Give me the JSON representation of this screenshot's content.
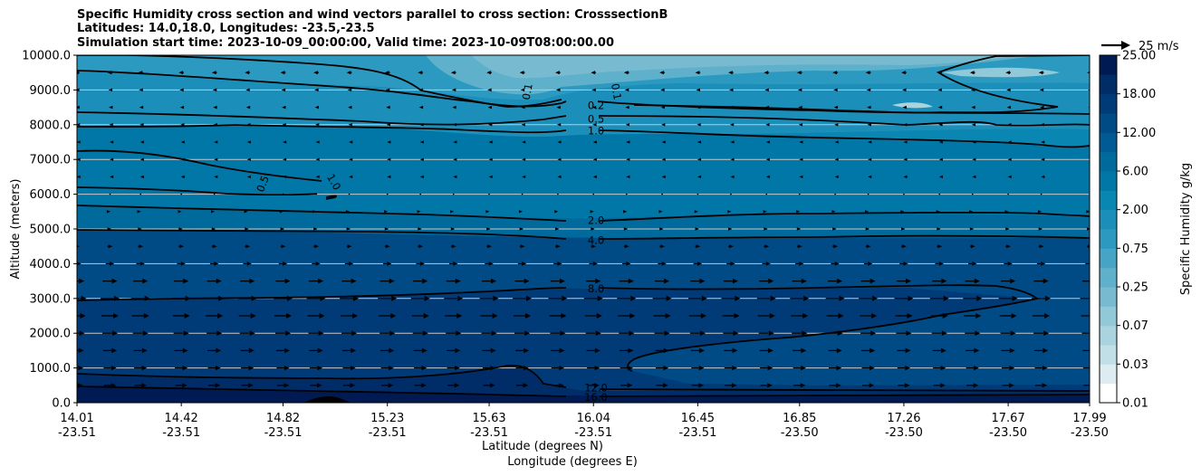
{
  "chart_data": {
    "type": "contour",
    "title_lines": [
      "Specific Humidity cross section and wind vectors parallel to cross section: CrosssectionB",
      "Latitudes: 14.0,18.0, Longitudes: -23.5,-23.5",
      "Simulation start time: 2023-10-09_00:00:00, Valid time: 2023-10-09T08:00:00.00"
    ],
    "ylabel": "Altitude (meters)",
    "xlabel_lat": "Latitude (degrees N)",
    "xlabel_lon": "Longitude (degrees E)",
    "ylim": [
      0,
      10000
    ],
    "y_ticks": [
      0,
      1000,
      2000,
      3000,
      4000,
      5000,
      6000,
      7000,
      8000,
      9000,
      10000
    ],
    "y_tick_labels": [
      "0.0",
      "1000.0",
      "2000.0",
      "3000.0",
      "4000.0",
      "5000.0",
      "6000.0",
      "7000.0",
      "8000.0",
      "9000.0",
      "10000.0"
    ],
    "x_ticks": [
      {
        "lat": "14.01",
        "lon": "-23.51"
      },
      {
        "lat": "14.42",
        "lon": "-23.51"
      },
      {
        "lat": "14.82",
        "lon": "-23.51"
      },
      {
        "lat": "15.23",
        "lon": "-23.51"
      },
      {
        "lat": "15.63",
        "lon": "-23.51"
      },
      {
        "lat": "16.04",
        "lon": "-23.51"
      },
      {
        "lat": "16.45",
        "lon": "-23.51"
      },
      {
        "lat": "16.85",
        "lon": "-23.50"
      },
      {
        "lat": "17.26",
        "lon": "-23.50"
      },
      {
        "lat": "17.67",
        "lon": "-23.50"
      },
      {
        "lat": "17.99",
        "lon": "-23.50"
      }
    ],
    "colorbar": {
      "label": "Specific Humidity g/kg",
      "levels": [
        0.01,
        0.02,
        0.03,
        0.05,
        0.07,
        0.1,
        0.25,
        0.5,
        0.75,
        1.0,
        2.0,
        4.0,
        6.0,
        8.0,
        12.0,
        16.0,
        18.0,
        20.0,
        25.0
      ],
      "tick_labels": [
        "0.01",
        "0.03",
        "0.07",
        "0.25",
        "0.75",
        "2.00",
        "6.00",
        "12.00",
        "18.00",
        "25.00"
      ],
      "colors": [
        "#ffffff",
        "#dcecf0",
        "#c1dfe6",
        "#a9d3de",
        "#92c9d8",
        "#78bbd0",
        "#5fb0cb",
        "#46a5c6",
        "#2c9ac0",
        "#1b8fba",
        "#0a86b3",
        "#0077a7",
        "#006a9d",
        "#005a93",
        "#004a86",
        "#003a77",
        "#002c68",
        "#001b54"
      ]
    },
    "contour_labels": [
      {
        "value": "0.1",
        "lat": 15.78,
        "alt": 8950
      },
      {
        "value": "0.1",
        "lat": 16.13,
        "alt": 8950
      },
      {
        "value": "0.2",
        "lat": 16.05,
        "alt": 8550
      },
      {
        "value": "0.5",
        "lat": 16.05,
        "alt": 8170
      },
      {
        "value": "1.0",
        "lat": 16.05,
        "alt": 7820
      },
      {
        "value": "0.5",
        "lat": 14.74,
        "alt": 6300
      },
      {
        "value": "1.0",
        "lat": 15.02,
        "alt": 6350
      },
      {
        "value": "2.0",
        "lat": 16.05,
        "alt": 5250
      },
      {
        "value": "4.0",
        "lat": 16.05,
        "alt": 4670
      },
      {
        "value": "8.0",
        "lat": 16.05,
        "alt": 3280
      },
      {
        "value": "12.0",
        "lat": 16.05,
        "alt": 430
      },
      {
        "value": "16.0",
        "lat": 16.05,
        "alt": 150
      }
    ],
    "wind_reference": {
      "label": "25 m/s"
    },
    "wind_vectors": {
      "lats": [
        14.01,
        14.14,
        14.26,
        14.42,
        14.55,
        14.68,
        14.82,
        14.95,
        15.08,
        15.23,
        15.36,
        15.49,
        15.63,
        15.76,
        15.9,
        16.04,
        16.17,
        16.31,
        16.45,
        16.58,
        16.72,
        16.85,
        16.99,
        17.12,
        17.26,
        17.4,
        17.53,
        17.67,
        17.8,
        17.99
      ],
      "alts": [
        500,
        1000,
        1500,
        2000,
        2500,
        3000,
        3500,
        4000,
        4500,
        5000,
        5500,
        6000,
        6500,
        7000,
        7500,
        8000,
        8500,
        9000,
        9500
      ],
      "speeds": [
        14,
        15,
        16,
        18,
        20,
        22,
        17,
        10,
        6,
        3,
        1,
        0,
        -1,
        -1,
        -1,
        -2,
        -3,
        -4,
        -6
      ]
    }
  }
}
